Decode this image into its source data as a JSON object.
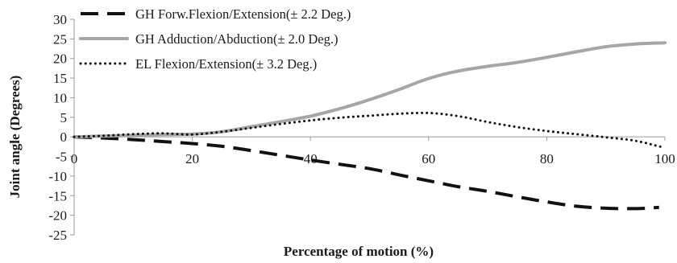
{
  "chart_data": {
    "type": "line",
    "title": "",
    "xlabel": "Percentage of motion (%)",
    "ylabel": "Joint angle (Degrees)",
    "xlim": [
      0,
      100
    ],
    "ylim": [
      -25,
      30
    ],
    "x_ticks": [
      0,
      20,
      40,
      60,
      80,
      100
    ],
    "y_ticks": [
      30,
      25,
      20,
      15,
      10,
      5,
      0,
      -5,
      -10,
      -15,
      -20,
      -25
    ],
    "x_tick_labels": [
      "0",
      "20",
      "40",
      "60",
      "80",
      "100"
    ],
    "y_tick_labels": [
      "30",
      "25",
      "20",
      "15",
      "10",
      "5",
      "0",
      "-5",
      "-10",
      "-15",
      "-20",
      "-25"
    ],
    "grid": false,
    "legend_position": "top-left",
    "series": [
      {
        "name": "GH Forw.Flexion/Extension(± 2.2 Deg.)",
        "color": "#111111",
        "style": "dashed",
        "x": [
          0,
          5,
          10,
          15,
          20,
          25,
          30,
          35,
          40,
          45,
          50,
          55,
          60,
          65,
          70,
          75,
          80,
          85,
          90,
          95,
          99
        ],
        "y": [
          0,
          -0.3,
          -0.7,
          -1.2,
          -1.7,
          -2.4,
          -3.5,
          -4.7,
          -5.9,
          -7.0,
          -8.1,
          -9.7,
          -11.2,
          -12.7,
          -13.9,
          -15.3,
          -16.6,
          -17.7,
          -18.2,
          -18.3,
          -18.0
        ]
      },
      {
        "name": "GH Adduction/Abduction(± 2.0 Deg.)",
        "color": "#a6a6a6",
        "style": "solid",
        "x": [
          0,
          5,
          10,
          15,
          20,
          25,
          30,
          35,
          40,
          45,
          50,
          55,
          60,
          65,
          70,
          75,
          80,
          85,
          90,
          95,
          100
        ],
        "y": [
          0,
          0.2,
          0.4,
          0.6,
          0.7,
          1.3,
          2.6,
          3.9,
          5.3,
          7.2,
          9.5,
          12.1,
          14.9,
          16.8,
          18.0,
          19.0,
          20.3,
          21.7,
          23.0,
          23.7,
          24.0
        ]
      },
      {
        "name": "EL Flexion/Extension(± 3.2 Deg.)",
        "color": "#111111",
        "style": "dotted",
        "x": [
          0,
          5,
          10,
          15,
          20,
          25,
          30,
          35,
          40,
          45,
          50,
          55,
          60,
          65,
          70,
          75,
          80,
          85,
          90,
          95,
          100
        ],
        "y": [
          0,
          0.3,
          0.7,
          0.9,
          0.6,
          1.3,
          2.3,
          3.3,
          4.2,
          4.9,
          5.4,
          5.9,
          6.1,
          5.3,
          3.8,
          2.5,
          1.5,
          0.7,
          -0.1,
          -1.0,
          -2.8
        ]
      }
    ]
  }
}
